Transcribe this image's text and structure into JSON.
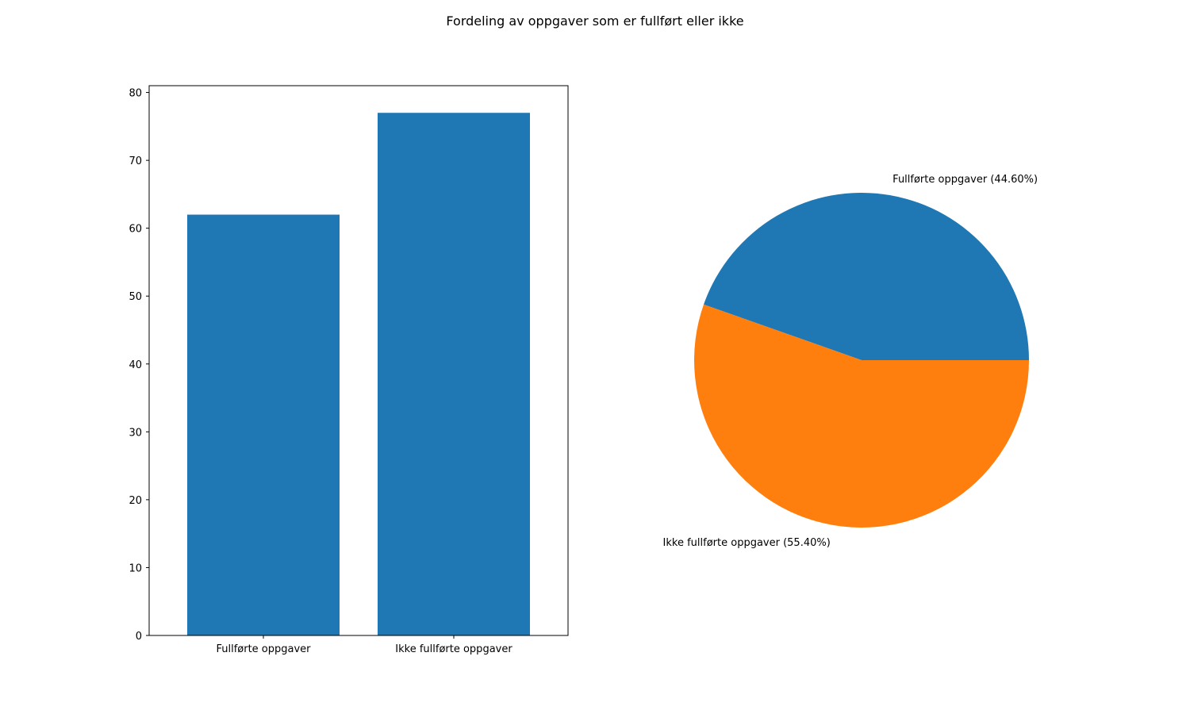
{
  "figure": {
    "title": "Fordeling av oppgaver som er fullført eller ikke"
  },
  "chart_data": [
    {
      "type": "bar",
      "categories": [
        "Fullførte oppgaver",
        "Ikke fullførte oppgaver"
      ],
      "values": [
        62,
        77
      ],
      "ylim": [
        0,
        81
      ],
      "yticks": [
        0,
        10,
        20,
        30,
        40,
        50,
        60,
        70,
        80
      ],
      "grid": false,
      "color": "#1f77b4"
    },
    {
      "type": "pie",
      "labels": [
        "Fullførte oppgaver",
        "Ikke fullførte oppgaver"
      ],
      "values": [
        44.6,
        55.4
      ],
      "label_texts": [
        "Fullførte oppgaver (44.60%)",
        "Ikke fullførte oppgaver (55.40%)"
      ],
      "colors": [
        "#1f77b4",
        "#ff7f0e"
      ]
    }
  ]
}
